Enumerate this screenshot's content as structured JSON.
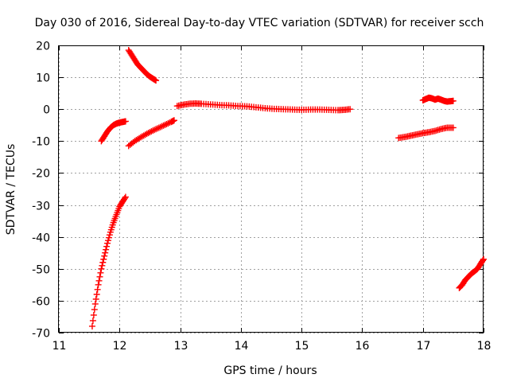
{
  "chart_data": {
    "type": "scatter",
    "title": "Day 030 of 2016, Sidereal Day-to-day VTEC variation (SDTVAR) for receiver scch",
    "xlabel": "GPS time / hours",
    "ylabel": "SDTVAR / TECUs",
    "xlim": [
      11,
      18
    ],
    "ylim": [
      -70,
      20
    ],
    "xticks": [
      "11",
      "12",
      "13",
      "14",
      "15",
      "16",
      "17",
      "18"
    ],
    "yticks": [
      "20",
      "10",
      "0",
      "-10",
      "-20",
      "-30",
      "-40",
      "-50",
      "-60",
      "-70"
    ],
    "grid": true,
    "marker": "+",
    "color": "#ff0000",
    "segments": [
      {
        "name": "arc-1",
        "points": [
          [
            11.55,
            -68
          ],
          [
            11.6,
            -61
          ],
          [
            11.65,
            -55
          ],
          [
            11.7,
            -50
          ],
          [
            11.75,
            -46
          ],
          [
            11.8,
            -42
          ],
          [
            11.85,
            -38.5
          ],
          [
            11.9,
            -35.5
          ],
          [
            11.95,
            -33
          ],
          [
            12.0,
            -30.5
          ],
          [
            12.05,
            -29
          ],
          [
            12.1,
            -27.5
          ]
        ]
      },
      {
        "name": "arc-2",
        "points": [
          [
            11.7,
            -10
          ],
          [
            11.75,
            -8.5
          ],
          [
            11.8,
            -7
          ],
          [
            11.85,
            -5.8
          ],
          [
            11.9,
            -5
          ],
          [
            11.95,
            -4.5
          ],
          [
            12.0,
            -4.2
          ],
          [
            12.05,
            -4.0
          ],
          [
            12.1,
            -3.8
          ]
        ]
      },
      {
        "name": "arc-3",
        "points": [
          [
            12.15,
            18.5
          ],
          [
            12.2,
            17
          ],
          [
            12.25,
            15.5
          ],
          [
            12.3,
            14
          ],
          [
            12.35,
            13
          ],
          [
            12.4,
            12
          ],
          [
            12.45,
            11
          ],
          [
            12.5,
            10.2
          ],
          [
            12.55,
            9.6
          ],
          [
            12.6,
            9
          ]
        ]
      },
      {
        "name": "arc-4",
        "points": [
          [
            12.15,
            -11.5
          ],
          [
            12.25,
            -10
          ],
          [
            12.35,
            -8.8
          ],
          [
            12.45,
            -7.7
          ],
          [
            12.55,
            -6.7
          ],
          [
            12.65,
            -5.8
          ],
          [
            12.75,
            -4.9
          ],
          [
            12.85,
            -4.0
          ],
          [
            12.9,
            -3.5
          ]
        ]
      },
      {
        "name": "arc-5",
        "points": [
          [
            12.95,
            1
          ],
          [
            13.05,
            1.4
          ],
          [
            13.15,
            1.7
          ],
          [
            13.25,
            1.8
          ],
          [
            13.35,
            1.7
          ],
          [
            13.5,
            1.5
          ],
          [
            13.65,
            1.3
          ],
          [
            13.8,
            1.2
          ],
          [
            13.95,
            1.0
          ],
          [
            14.1,
            0.9
          ],
          [
            14.25,
            0.6
          ],
          [
            14.4,
            0.3
          ],
          [
            14.55,
            0.1
          ],
          [
            14.7,
            0
          ],
          [
            14.85,
            -0.1
          ],
          [
            15.0,
            -0.2
          ],
          [
            15.15,
            -0.1
          ],
          [
            15.3,
            -0.1
          ],
          [
            15.45,
            -0.2
          ],
          [
            15.6,
            -0.3
          ],
          [
            15.7,
            -0.2
          ],
          [
            15.8,
            0
          ]
        ]
      },
      {
        "name": "arc-6",
        "points": [
          [
            16.6,
            -9
          ],
          [
            16.7,
            -8.7
          ],
          [
            16.8,
            -8.3
          ],
          [
            16.9,
            -7.9
          ],
          [
            17.0,
            -7.5
          ],
          [
            17.1,
            -7.2
          ],
          [
            17.2,
            -6.8
          ],
          [
            17.3,
            -6.2
          ],
          [
            17.4,
            -5.8
          ],
          [
            17.5,
            -5.8
          ]
        ]
      },
      {
        "name": "arc-7",
        "points": [
          [
            17.0,
            2.8
          ],
          [
            17.05,
            3.2
          ],
          [
            17.1,
            3.6
          ],
          [
            17.15,
            3.4
          ],
          [
            17.2,
            3.0
          ],
          [
            17.25,
            3.3
          ],
          [
            17.3,
            3.0
          ],
          [
            17.35,
            2.6
          ],
          [
            17.4,
            2.4
          ],
          [
            17.45,
            2.5
          ],
          [
            17.5,
            2.6
          ]
        ]
      },
      {
        "name": "arc-8",
        "points": [
          [
            17.6,
            -56
          ],
          [
            17.65,
            -55
          ],
          [
            17.7,
            -53.5
          ],
          [
            17.75,
            -52.5
          ],
          [
            17.8,
            -51.5
          ],
          [
            17.85,
            -50.8
          ],
          [
            17.9,
            -50
          ],
          [
            17.95,
            -48.5
          ],
          [
            18.0,
            -47
          ]
        ]
      }
    ]
  }
}
